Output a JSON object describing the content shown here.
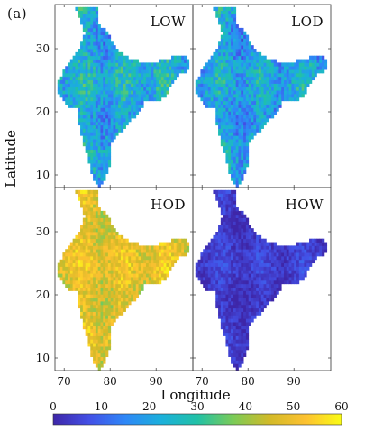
{
  "figure_label": "(a)",
  "colormap_stops": [
    "#3e26a8",
    "#4350e6",
    "#2e87f7",
    "#1bb0db",
    "#21c1a6",
    "#7bcb57",
    "#d2ba28",
    "#fdc131",
    "#f9fb15"
  ],
  "chart_data": {
    "type": "heatmap",
    "xlabel": "Longitude",
    "ylabel": "Latitude",
    "x_ticks": [
      70,
      80,
      90
    ],
    "y_ticks": [
      10,
      20,
      30
    ],
    "xlim": [
      68,
      98
    ],
    "ylim": [
      8,
      37
    ],
    "colorbar": {
      "min": 0,
      "max": 60,
      "ticks": [
        0,
        10,
        20,
        30,
        40,
        50,
        60
      ]
    },
    "panels": [
      {
        "name": "LOW",
        "position": "top-left",
        "typical_value": 22,
        "spread": 9
      },
      {
        "name": "LOD",
        "position": "top-right",
        "typical_value": 20,
        "spread": 9
      },
      {
        "name": "HOD",
        "position": "bottom-left",
        "typical_value": 48,
        "spread": 7
      },
      {
        "name": "HOW",
        "position": "bottom-right",
        "typical_value": 4,
        "spread": 4
      }
    ]
  }
}
